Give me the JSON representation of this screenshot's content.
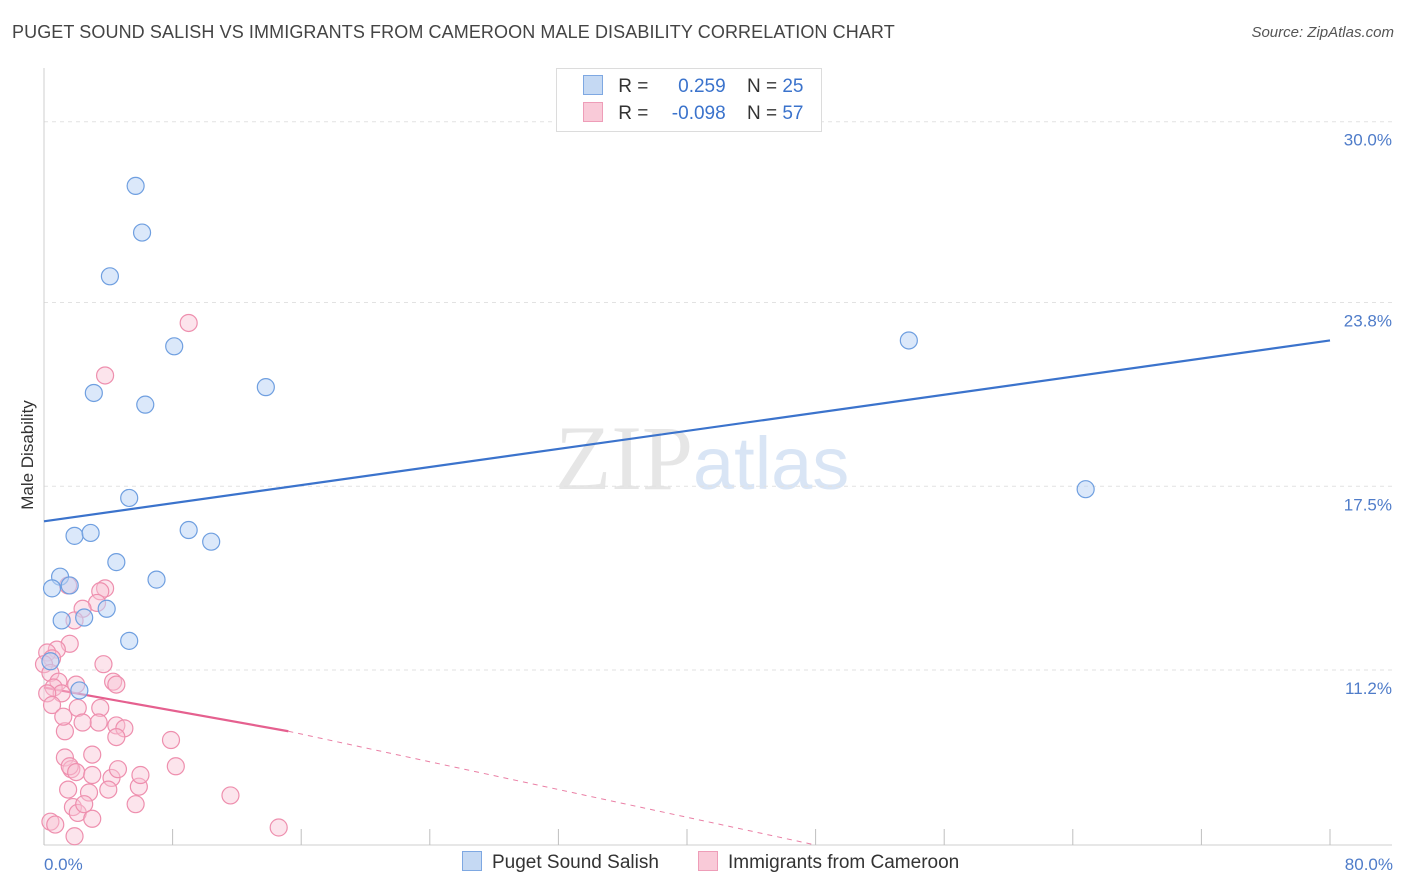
{
  "title": "PUGET SOUND SALISH VS IMMIGRANTS FROM CAMEROON MALE DISABILITY CORRELATION CHART",
  "source": "Source: ZipAtlas.com",
  "watermark": {
    "zip": "ZIP",
    "atlas": "atlas"
  },
  "legend": {
    "r_label": "R =",
    "n_label": "N =",
    "series1": {
      "r": "0.259",
      "n": "25"
    },
    "series2": {
      "r": "-0.098",
      "n": "57"
    }
  },
  "chart_data": {
    "type": "scatter",
    "title": "PUGET SOUND SALISH VS IMMIGRANTS FROM CAMEROON MALE DISABILITY CORRELATION CHART",
    "xlabel": "",
    "ylabel": "Male Disability",
    "xlim": [
      0,
      80
    ],
    "ylim": [
      5.2,
      31.5
    ],
    "x_tick_labels": [
      "0.0%",
      "80.0%"
    ],
    "y_ticks": [
      11.2,
      17.5,
      23.8,
      30.0
    ],
    "y_tick_labels": [
      "11.2%",
      "17.5%",
      "23.8%",
      "30.0%"
    ],
    "legend_position": "top-center",
    "colors": {
      "series1": "#6f9fe0",
      "series2": "#ee8fae",
      "line1": "#3b73cc",
      "line2": "#e5608f",
      "tick": "#4f7cc9"
    },
    "series": [
      {
        "name": "Puget Sound Salish",
        "r": 0.259,
        "n": 25,
        "trend": {
          "x0": 0,
          "y0": 16.3,
          "x1": 80,
          "y1": 22.5,
          "dashed_to": null
        },
        "points": [
          [
            5.7,
            27.8
          ],
          [
            6.1,
            26.2
          ],
          [
            4.1,
            24.7
          ],
          [
            8.1,
            22.3
          ],
          [
            3.1,
            20.7
          ],
          [
            6.3,
            20.3
          ],
          [
            13.8,
            20.9
          ],
          [
            53.8,
            22.5
          ],
          [
            64.8,
            17.4
          ],
          [
            5.3,
            17.1
          ],
          [
            1.9,
            15.8
          ],
          [
            2.9,
            15.9
          ],
          [
            9.0,
            16.0
          ],
          [
            10.4,
            15.6
          ],
          [
            4.5,
            14.9
          ],
          [
            1.0,
            14.4
          ],
          [
            0.5,
            14.0
          ],
          [
            1.6,
            14.1
          ],
          [
            7.0,
            14.3
          ],
          [
            3.9,
            13.3
          ],
          [
            1.1,
            12.9
          ],
          [
            2.5,
            13.0
          ],
          [
            5.3,
            12.2
          ],
          [
            0.4,
            11.5
          ],
          [
            2.2,
            10.5
          ]
        ]
      },
      {
        "name": "Immigrants from Cameroon",
        "r": -0.098,
        "n": 57,
        "trend": {
          "x0": 0,
          "y0": 10.6,
          "x1": 15.2,
          "y1": 9.1,
          "dashed_to": {
            "x": 48,
            "y": 5.2
          }
        },
        "points": [
          [
            9.0,
            23.1
          ],
          [
            3.8,
            21.3
          ],
          [
            3.8,
            14.0
          ],
          [
            3.5,
            13.9
          ],
          [
            1.5,
            14.1
          ],
          [
            3.3,
            13.5
          ],
          [
            2.4,
            13.3
          ],
          [
            1.9,
            12.9
          ],
          [
            1.6,
            12.1
          ],
          [
            0.8,
            11.9
          ],
          [
            0.2,
            11.8
          ],
          [
            0.5,
            11.6
          ],
          [
            0.0,
            11.4
          ],
          [
            0.4,
            11.1
          ],
          [
            3.7,
            11.4
          ],
          [
            0.9,
            10.8
          ],
          [
            2.0,
            10.7
          ],
          [
            0.6,
            10.6
          ],
          [
            1.1,
            10.4
          ],
          [
            0.2,
            10.4
          ],
          [
            4.3,
            10.8
          ],
          [
            4.5,
            10.7
          ],
          [
            0.5,
            10.0
          ],
          [
            3.5,
            9.9
          ],
          [
            2.1,
            9.9
          ],
          [
            4.5,
            9.3
          ],
          [
            3.4,
            9.4
          ],
          [
            2.4,
            9.4
          ],
          [
            1.3,
            9.1
          ],
          [
            5.0,
            9.2
          ],
          [
            4.5,
            8.9
          ],
          [
            7.9,
            8.8
          ],
          [
            1.3,
            8.2
          ],
          [
            3.0,
            8.3
          ],
          [
            1.7,
            7.8
          ],
          [
            1.6,
            7.9
          ],
          [
            2.0,
            7.7
          ],
          [
            4.2,
            7.5
          ],
          [
            3.0,
            7.6
          ],
          [
            8.2,
            7.9
          ],
          [
            5.9,
            7.2
          ],
          [
            1.5,
            7.1
          ],
          [
            11.6,
            6.9
          ],
          [
            1.8,
            6.5
          ],
          [
            0.4,
            6.0
          ],
          [
            2.1,
            6.3
          ],
          [
            5.7,
            6.6
          ],
          [
            2.8,
            7.0
          ],
          [
            1.9,
            5.5
          ],
          [
            14.6,
            5.8
          ],
          [
            0.7,
            5.9
          ],
          [
            1.2,
            9.6
          ],
          [
            4.6,
            7.8
          ],
          [
            2.5,
            6.6
          ],
          [
            4.0,
            7.1
          ],
          [
            6.0,
            7.6
          ],
          [
            3.0,
            6.1
          ]
        ]
      }
    ]
  }
}
